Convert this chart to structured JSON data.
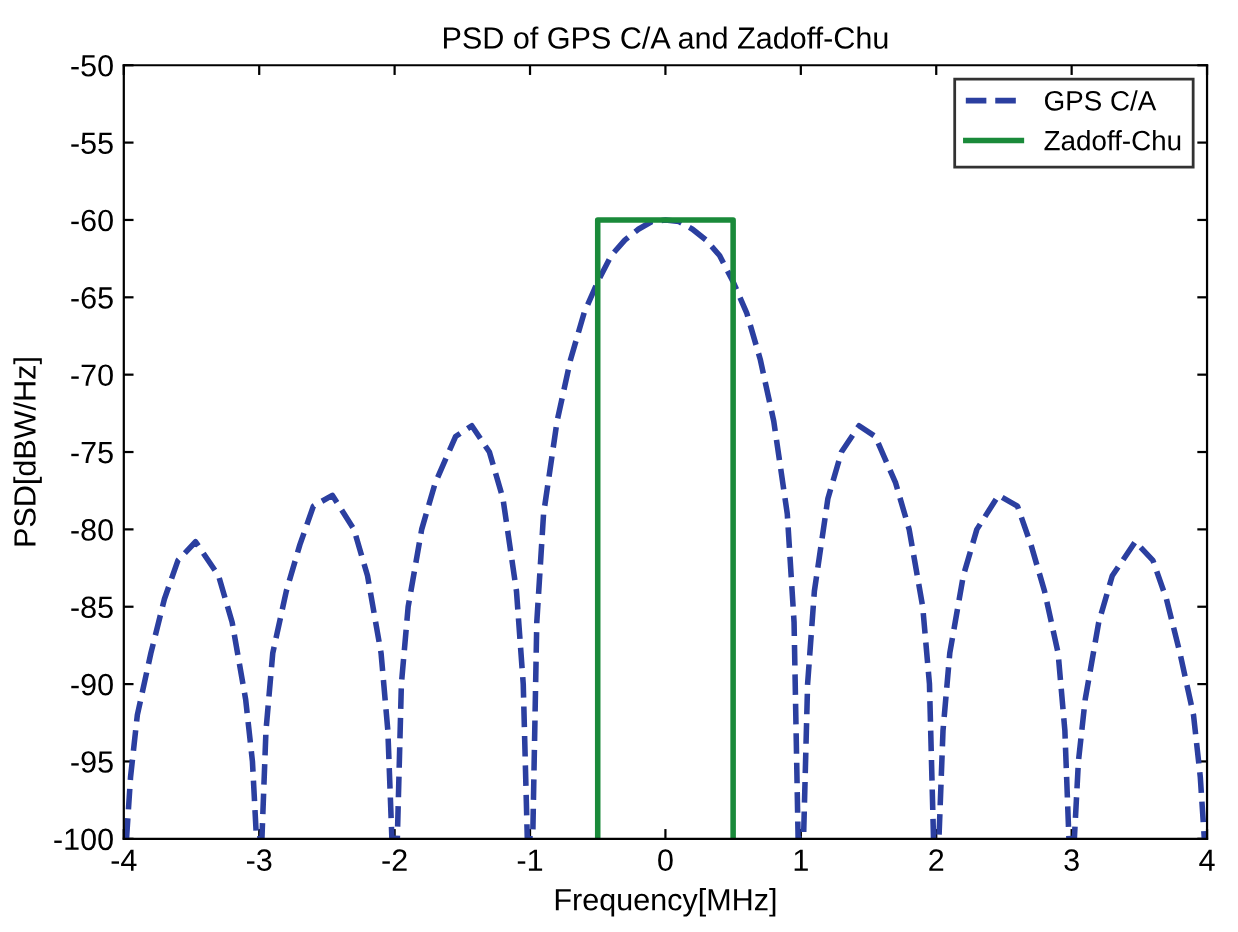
{
  "chart_data": {
    "type": "line",
    "title": "PSD of GPS C/A and Zadoff-Chu",
    "xlabel": "Frequency[MHz]",
    "ylabel": "PSD[dBW/Hz]",
    "xlim": [
      -4,
      4
    ],
    "ylim": [
      -100,
      -50
    ],
    "xticks": [
      -4,
      -3,
      -2,
      -1,
      0,
      1,
      2,
      3,
      4
    ],
    "yticks": [
      -100,
      -95,
      -90,
      -85,
      -80,
      -75,
      -70,
      -65,
      -60,
      -55,
      -50
    ],
    "grid": false,
    "legend": "top right",
    "series": [
      {
        "name": "GPS C/A",
        "color": "#2b3fa0",
        "line_style": "dashed",
        "marker": "none",
        "x": [
          -3.98,
          -3.95,
          -3.9,
          -3.8,
          -3.7,
          -3.6,
          -3.47,
          -3.3,
          -3.2,
          -3.1,
          -3.05,
          -3.02,
          -2.98,
          -2.95,
          -2.9,
          -2.8,
          -2.7,
          -2.6,
          -2.46,
          -2.3,
          -2.2,
          -2.1,
          -2.05,
          -2.02,
          -1.98,
          -1.95,
          -1.9,
          -1.8,
          -1.7,
          -1.55,
          -1.43,
          -1.3,
          -1.2,
          -1.1,
          -1.05,
          -1.02,
          -0.98,
          -0.95,
          -0.9,
          -0.8,
          -0.7,
          -0.6,
          -0.5,
          -0.4,
          -0.3,
          -0.2,
          -0.1,
          0,
          0.1,
          0.2,
          0.3,
          0.4,
          0.5,
          0.6,
          0.7,
          0.8,
          0.9,
          0.95,
          0.98,
          1.02,
          1.05,
          1.1,
          1.2,
          1.3,
          1.43,
          1.55,
          1.7,
          1.8,
          1.9,
          1.95,
          1.98,
          2.02,
          2.05,
          2.1,
          2.2,
          2.3,
          2.46,
          2.6,
          2.7,
          2.8,
          2.9,
          2.95,
          2.98,
          3.02,
          3.05,
          3.1,
          3.2,
          3.3,
          3.47,
          3.6,
          3.7,
          3.8,
          3.9,
          3.95,
          3.98
        ],
        "values": [
          -100,
          -96,
          -92,
          -88,
          -84.5,
          -82,
          -80.8,
          -83,
          -86,
          -91,
          -95,
          -100,
          -100,
          -93,
          -88,
          -84,
          -81,
          -78.5,
          -77.8,
          -80,
          -83,
          -88,
          -93,
          -100,
          -100,
          -90,
          -85,
          -80,
          -77,
          -74,
          -73.3,
          -75,
          -78,
          -84,
          -90,
          -100,
          -100,
          -86,
          -79,
          -73,
          -69,
          -66,
          -64,
          -62.3,
          -61.3,
          -60.6,
          -60.1,
          -60,
          -60.1,
          -60.6,
          -61.3,
          -62.3,
          -64,
          -66,
          -69,
          -73,
          -79,
          -86,
          -100,
          -100,
          -90,
          -84,
          -78,
          -75,
          -73.3,
          -74,
          -77,
          -80,
          -85,
          -90,
          -100,
          -100,
          -93,
          -88,
          -83,
          -80,
          -77.8,
          -78.5,
          -81,
          -84,
          -88,
          -93,
          -100,
          -100,
          -95,
          -91,
          -86,
          -83,
          -80.8,
          -82,
          -84.5,
          -88,
          -92,
          -96,
          -100
        ]
      },
      {
        "name": "Zadoff-Chu",
        "color": "#1a8a3a",
        "line_style": "solid",
        "marker": "none",
        "x": [
          -0.5,
          -0.5,
          0.5,
          0.5
        ],
        "values": [
          -100,
          -60,
          -60,
          -100
        ]
      }
    ]
  }
}
